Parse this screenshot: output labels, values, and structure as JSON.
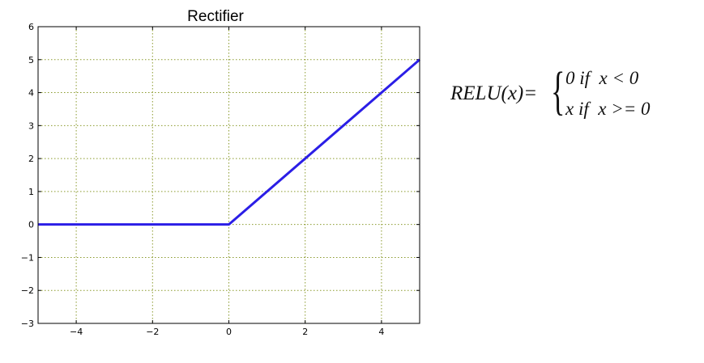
{
  "chart_data": {
    "type": "line",
    "title": "Rectifier",
    "xlabel": "",
    "ylabel": "",
    "xlim": [
      -5,
      5
    ],
    "ylim": [
      -3,
      6
    ],
    "x_ticks": [
      -4,
      -2,
      0,
      2,
      4
    ],
    "x_tick_labels": [
      "−4",
      "−2",
      "0",
      "2",
      "4"
    ],
    "y_ticks": [
      -3,
      -2,
      -1,
      0,
      1,
      2,
      3,
      4,
      5,
      6
    ],
    "y_tick_labels": [
      "−3",
      "−2",
      "−1",
      "0",
      "1",
      "2",
      "3",
      "4",
      "5",
      "6"
    ],
    "grid": true,
    "series": [
      {
        "x": [
          -5,
          0,
          5
        ],
        "y": [
          0,
          0,
          5
        ],
        "color": "#2b1ee6"
      }
    ]
  },
  "formula": {
    "lhs": "RELU(x)=",
    "case_1": "0 if  x < 0",
    "case_2": "x if  x >= 0"
  },
  "colors": {
    "grid": "#8a9a2c",
    "line": "#2b1ee6"
  }
}
